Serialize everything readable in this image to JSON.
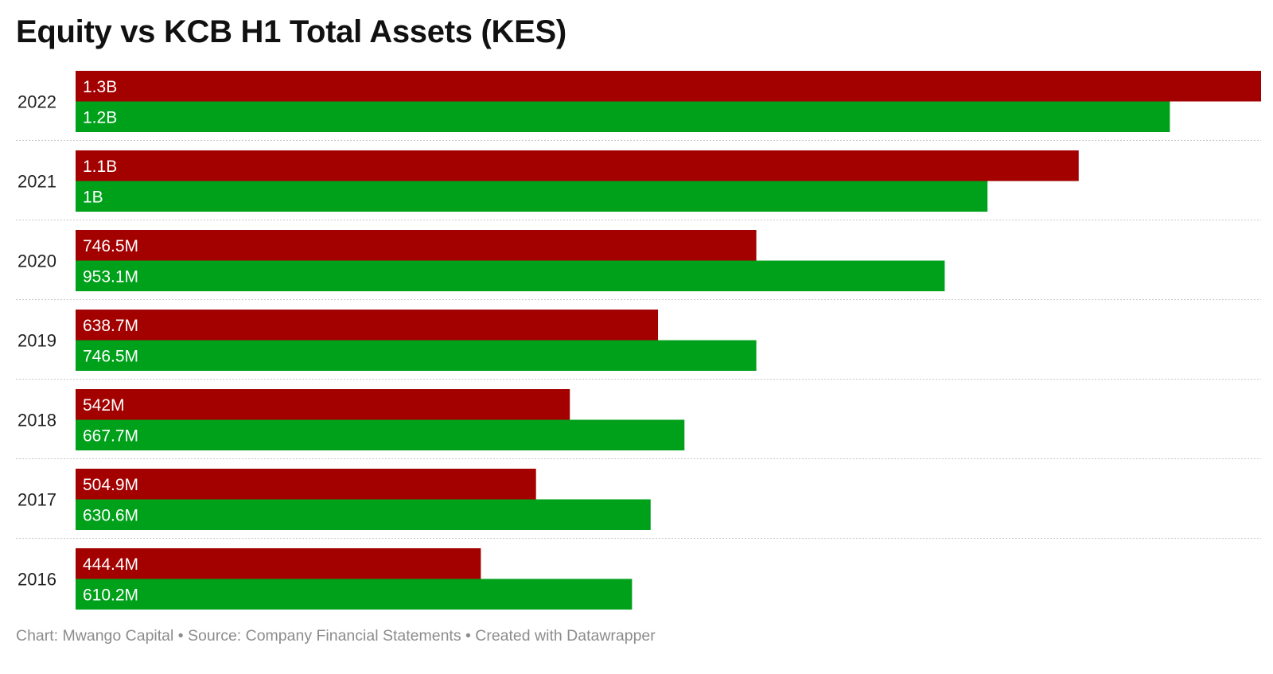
{
  "chart_data": {
    "type": "bar",
    "orientation": "horizontal",
    "title": "Equity vs KCB H1 Total Assets (KES)",
    "categories": [
      "2022",
      "2021",
      "2020",
      "2019",
      "2018",
      "2017",
      "2016"
    ],
    "series": [
      {
        "color": "#a30000",
        "values": [
          1300000000,
          1100000000,
          746500000,
          638700000,
          542000000,
          504900000,
          444400000
        ],
        "labels": [
          "1.3B",
          "1.1B",
          "746.5M",
          "638.7M",
          "542M",
          "504.9M",
          "444.4M"
        ]
      },
      {
        "color": "#00a11a",
        "values": [
          1200000000,
          1000000000,
          953100000,
          746500000,
          667700000,
          630600000,
          610200000
        ],
        "labels": [
          "1.2B",
          "1B",
          "953.1M",
          "746.5M",
          "667.7M",
          "630.6M",
          "610.2M"
        ]
      }
    ],
    "xlim": [
      0,
      1300000000
    ],
    "grid": false,
    "legend": "none"
  },
  "footer": {
    "text": "Chart: Mwango Capital • Source: Company Financial Statements • Created with Datawrapper"
  }
}
